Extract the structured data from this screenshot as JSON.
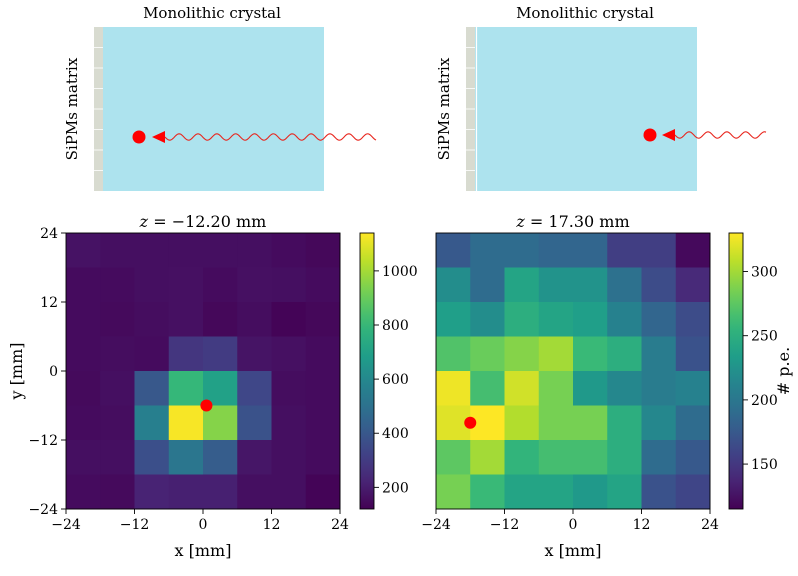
{
  "schematics": [
    {
      "title": "Monolithic crystal",
      "side_label": "SiPMs matrix"
    },
    {
      "title": "Monolithic crystal",
      "side_label": "SiPMs matrix"
    }
  ],
  "chart_data": [
    {
      "type": "heatmap",
      "title": "z = −12.20 mm",
      "title_parts": {
        "var": "z",
        "rest": " = −12.20 mm"
      },
      "xlabel": "x [mm]",
      "ylabel": "y [mm]",
      "xlim": [
        -24,
        24
      ],
      "ylim": [
        -24,
        24
      ],
      "x_ticks": [
        -24,
        -12,
        0,
        12,
        24
      ],
      "y_ticks": [
        -24,
        -12,
        0,
        12,
        24
      ],
      "x_tick_labels": [
        "−24",
        "−12",
        "0",
        "12",
        "24"
      ],
      "y_tick_labels": [
        "−24",
        "−12",
        "0",
        "12",
        "24"
      ],
      "grid": {
        "rows": 8,
        "cols": 8
      },
      "rows_top_to_bottom": [
        [
          170,
          160,
          160,
          160,
          160,
          160,
          150,
          140
        ],
        [
          150,
          150,
          160,
          165,
          150,
          165,
          160,
          150
        ],
        [
          150,
          145,
          155,
          165,
          140,
          155,
          130,
          140
        ],
        [
          150,
          155,
          150,
          280,
          300,
          175,
          165,
          150
        ],
        [
          145,
          160,
          400,
          800,
          700,
          340,
          155,
          150
        ],
        [
          150,
          155,
          560,
          1130,
          950,
          380,
          160,
          150
        ],
        [
          160,
          160,
          370,
          520,
          420,
          180,
          160,
          150
        ],
        [
          150,
          145,
          220,
          210,
          210,
          160,
          160,
          130
        ]
      ],
      "colorbar": {
        "min": 120,
        "max": 1140,
        "ticks": [
          200,
          400,
          600,
          800,
          1000
        ],
        "tick_labels": [
          "200",
          "400",
          "600",
          "800",
          "1000"
        ],
        "label": ""
      },
      "marker": {
        "x": 0.6,
        "y": -6.0,
        "color": "#ff0000"
      }
    },
    {
      "type": "heatmap",
      "title": "z = 17.30 mm",
      "title_parts": {
        "var": "z",
        "rest": " = 17.30 mm"
      },
      "xlabel": "x [mm]",
      "ylabel": "",
      "xlim": [
        -24,
        24
      ],
      "ylim": [
        -24,
        24
      ],
      "x_ticks": [
        -24,
        -12,
        0,
        12,
        24
      ],
      "x_tick_labels": [
        "−24",
        "−12",
        "0",
        "12",
        "24"
      ],
      "grid": {
        "rows": 8,
        "cols": 8
      },
      "rows_top_to_bottom": [
        [
          175,
          190,
          190,
          185,
          185,
          155,
          155,
          120
        ],
        [
          220,
          190,
          240,
          225,
          225,
          195,
          165,
          140
        ],
        [
          235,
          220,
          250,
          240,
          235,
          210,
          185,
          165
        ],
        [
          270,
          280,
          290,
          300,
          260,
          250,
          205,
          170
        ],
        [
          325,
          265,
          315,
          285,
          230,
          215,
          205,
          210
        ],
        [
          320,
          330,
          305,
          285,
          285,
          250,
          215,
          190
        ],
        [
          275,
          300,
          255,
          265,
          265,
          250,
          190,
          175
        ],
        [
          285,
          260,
          240,
          240,
          230,
          240,
          170,
          160
        ]
      ],
      "colorbar": {
        "min": 115,
        "max": 330,
        "ticks": [
          150,
          200,
          250,
          300
        ],
        "tick_labels": [
          "150",
          "200",
          "250",
          "300"
        ],
        "label": "# p.e."
      },
      "marker": {
        "x": -18.0,
        "y": -9.0,
        "color": "#ff0000"
      }
    }
  ]
}
